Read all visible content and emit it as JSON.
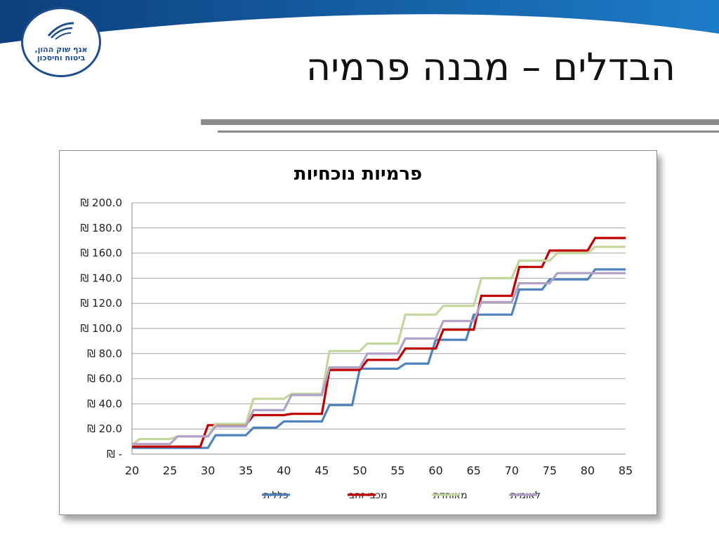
{
  "slide": {
    "title": "הבדלים – מבנה פרמיה",
    "logo_line1": "אגף שוק ההון,",
    "logo_line2": "ביטוח וחיסכון"
  },
  "colors": {
    "header_blue": "#1565b0",
    "rule_gray": "#8c8c8c"
  },
  "chart_data": {
    "type": "line",
    "title": "פרמיות נוכחיות",
    "xlabel": "",
    "ylabel": "",
    "x": [
      20,
      21,
      22,
      23,
      24,
      25,
      26,
      27,
      28,
      29,
      30,
      31,
      32,
      33,
      34,
      35,
      36,
      37,
      38,
      39,
      40,
      41,
      42,
      43,
      44,
      45,
      46,
      47,
      48,
      49,
      50,
      51,
      52,
      53,
      54,
      55,
      56,
      57,
      58,
      59,
      60,
      61,
      62,
      63,
      64,
      65,
      66,
      67,
      68,
      69,
      70,
      71,
      72,
      73,
      74,
      75,
      76,
      77,
      78,
      79,
      80,
      81,
      82,
      83,
      84,
      85
    ],
    "xlim": [
      20,
      85
    ],
    "x_ticks": [
      "20",
      "25",
      "30",
      "35",
      "40",
      "45",
      "50",
      "55",
      "60",
      "65",
      "70",
      "75",
      "80",
      "85"
    ],
    "ylim": [
      0,
      200
    ],
    "y_ticks": [
      "₪ -",
      "₪ 20.0",
      "₪ 40.0",
      "₪ 60.0",
      "₪ 80.0",
      "₪ 100.0",
      "₪ 120.0",
      "₪ 140.0",
      "₪ 160.0",
      "₪ 180.0",
      "₪ 200.0"
    ],
    "grid": true,
    "legend_position": "bottom",
    "series": [
      {
        "name": "כללית",
        "color": "#4f81bd",
        "values": [
          5,
          5,
          5,
          5,
          5,
          5,
          5,
          5,
          5,
          5,
          5,
          15,
          15,
          15,
          15,
          15,
          21,
          21,
          21,
          21,
          26,
          26,
          26,
          26,
          26,
          26,
          39,
          39,
          39,
          39,
          68,
          68,
          68,
          68,
          68,
          68,
          72,
          72,
          72,
          72,
          91,
          91,
          91,
          91,
          91,
          111,
          111,
          111,
          111,
          111,
          111,
          131,
          131,
          131,
          131,
          139,
          139,
          139,
          139,
          139,
          139,
          147,
          147,
          147,
          147,
          147
        ]
      },
      {
        "name": "מכבי זהב",
        "color": "#c00000",
        "values": [
          6,
          6,
          6,
          6,
          6,
          6,
          6,
          6,
          6,
          6,
          23,
          23,
          23,
          23,
          23,
          23,
          31,
          31,
          31,
          31,
          31,
          32,
          32,
          32,
          32,
          32,
          67,
          67,
          67,
          67,
          67,
          75,
          75,
          75,
          75,
          75,
          84,
          84,
          84,
          84,
          84,
          99,
          99,
          99,
          99,
          99,
          126,
          126,
          126,
          126,
          126,
          149,
          149,
          149,
          149,
          162,
          162,
          162,
          162,
          162,
          162,
          172,
          172,
          172,
          172,
          172
        ]
      },
      {
        "name": "מאוחדת",
        "color": "#c3d69b",
        "values": [
          7,
          12,
          12,
          12,
          12,
          12,
          14,
          14,
          14,
          14,
          14,
          24,
          24,
          24,
          24,
          24,
          44,
          44,
          44,
          44,
          44,
          48,
          48,
          48,
          48,
          48,
          82,
          82,
          82,
          82,
          82,
          88,
          88,
          88,
          88,
          88,
          111,
          111,
          111,
          111,
          111,
          118,
          118,
          118,
          118,
          118,
          140,
          140,
          140,
          140,
          140,
          154,
          154,
          154,
          154,
          154,
          160,
          160,
          160,
          160,
          160,
          165,
          165,
          165,
          165,
          165
        ]
      },
      {
        "name": "לאומית",
        "color": "#b2a1c7",
        "values": [
          8,
          8,
          8,
          8,
          8,
          8,
          14,
          14,
          14,
          14,
          14,
          22,
          22,
          22,
          22,
          22,
          35,
          35,
          35,
          35,
          35,
          47,
          47,
          47,
          47,
          47,
          69,
          69,
          69,
          69,
          69,
          80,
          80,
          80,
          80,
          80,
          92,
          92,
          92,
          92,
          92,
          106,
          106,
          106,
          106,
          106,
          121,
          121,
          121,
          121,
          121,
          136,
          136,
          136,
          136,
          136,
          144,
          144,
          144,
          144,
          144,
          144,
          144,
          144,
          144,
          144
        ]
      }
    ]
  }
}
